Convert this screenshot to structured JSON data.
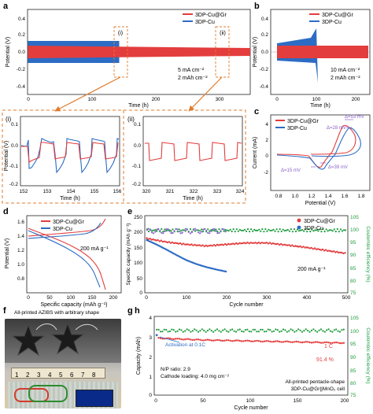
{
  "colors": {
    "red": "#e33d3d",
    "blue": "#2d6cc4",
    "green": "#1c9c3c",
    "orange": "#e07b2c",
    "purple": "#8a63c9"
  },
  "panel_letters": [
    "a",
    "b",
    "c",
    "d",
    "e",
    "f",
    "g",
    "h"
  ],
  "panel_a": {
    "legend": [
      "3DP-Cu@Gr",
      "3DP-Cu"
    ],
    "ylabel": "Potential (V)",
    "xlabel": "Time (h)",
    "xticks": [
      "0",
      "100",
      "200",
      "300"
    ],
    "yticks": [
      "0.4",
      "0.2",
      "0.0",
      "-0.2",
      "-0.4"
    ],
    "marks": [
      "(i)",
      "(ii)"
    ],
    "note_line1": "5 mA cm⁻²",
    "note_line2": "2 mAh cm⁻²"
  },
  "panel_b": {
    "legend": [
      "3DP-Cu@Gr",
      "3DP-Cu"
    ],
    "ylabel": "Potential (V)",
    "xlabel": "Time (h)",
    "xticks": [
      "0",
      "100",
      "200"
    ],
    "yticks": [
      "0.4",
      "0.2",
      "0.0",
      "-0.2",
      "-0.4"
    ],
    "note_line1": "10 mA cm⁻²",
    "note_line2": "2 mAh cm⁻²"
  },
  "panel_i": {
    "label": "(i)",
    "ylabel": "Potential (V)",
    "xlabel": "Time (h)",
    "xticks": [
      "152",
      "153",
      "154",
      "155",
      "156"
    ],
    "yticks": [
      "0.1",
      "0.0",
      "-0.1",
      "-0.2"
    ]
  },
  "panel_ii": {
    "label": "(ii)",
    "xlabel": "Time (h)",
    "xticks": [
      "320",
      "321",
      "322",
      "323",
      "324"
    ],
    "yticks": [
      "0.1",
      "0.0",
      "-0.1",
      "-0.2"
    ]
  },
  "panel_c": {
    "legend": [
      "3DP-Cu@Gr",
      "3DP-Cu"
    ],
    "ylabel": "Current (mA)",
    "xlabel": "Potential (V)",
    "xticks": [
      "0.8",
      "1.0",
      "1.2",
      "1.4",
      "1.6",
      "1.8"
    ],
    "yticks": [
      "4",
      "2",
      "0",
      "-2"
    ],
    "ann": [
      "Δ=53 mV",
      "Δ=28 mV",
      "Δ=15 mV",
      "Δ=39 mV"
    ]
  },
  "panel_d": {
    "legend": [
      "3DP-Cu@Gr",
      "3DP-Cu"
    ],
    "ylabel": "Potential (V)",
    "xlabel": "Specific capacity (mAh g⁻¹)",
    "xticks": [
      "0",
      "50",
      "100",
      "150",
      "200"
    ],
    "yticks": [
      "1.6",
      "1.4",
      "1.2",
      "1.0",
      "0.8"
    ],
    "rate": "200 mA g⁻¹"
  },
  "panel_e": {
    "legend": [
      "3DP-Cu@Gr",
      "3DP-Cu"
    ],
    "ylabel": "Specific capacity (mAh g⁻¹)",
    "ylabel2": "Coulombic efficiency (%)",
    "xlabel": "Cycle number",
    "xticks": [
      "0",
      "100",
      "200",
      "300",
      "400",
      "500"
    ],
    "yticks": [
      "250",
      "200",
      "150",
      "100",
      "50",
      "0"
    ],
    "y2ticks": [
      "105",
      "100",
      "95",
      "90",
      "85",
      "80",
      "75"
    ],
    "rate": "200 mA g⁻¹"
  },
  "panel_f": {
    "title": "All-printed AZIBS with arbitrary shape",
    "ruler_numbers": [
      "1",
      "2",
      "3",
      "4",
      "5",
      "6",
      "7",
      "8"
    ]
  },
  "panel_h": {
    "ylabel": "Capacity (mAh)",
    "ylabel2": "Coulombic efficiency (%)",
    "xlabel": "Cycle number",
    "xticks": [
      "0",
      "50",
      "100",
      "150",
      "200"
    ],
    "yticks": [
      "4",
      "3",
      "2",
      "1",
      "0"
    ],
    "y2ticks": [
      "105",
      "100",
      "95",
      "90",
      "85",
      "80",
      "75"
    ],
    "activation": "Activation at 0.1C",
    "np_ratio": "N/P ratio: 2.9",
    "loading": "Cathode loading: 4.0 mg cm⁻²",
    "rate": "1 C",
    "retention": "91.4 %",
    "cell_line1": "All-printed pentacle-shape",
    "cell_line2": "3DP-Cu@Gr||MnO₂ cell"
  },
  "chart_data": [
    {
      "panel": "a",
      "type": "line",
      "xlabel": "Time (h)",
      "ylabel": "Potential (V)",
      "xlim": [
        0,
        350
      ],
      "ylim": [
        -0.45,
        0.45
      ],
      "series": [
        {
          "name": "3DP-Cu@Gr",
          "note": "stable ±0.05 V to 350 h"
        },
        {
          "name": "3DP-Cu",
          "note": "±0.12 V, fails near 150 h"
        }
      ]
    },
    {
      "panel": "b",
      "type": "line",
      "xlabel": "Time (h)",
      "ylabel": "Potential (V)",
      "xlim": [
        0,
        250
      ],
      "ylim": [
        -0.45,
        0.45
      ],
      "series": [
        {
          "name": "3DP-Cu@Gr"
        },
        {
          "name": "3DP-Cu",
          "note": "fails near 100 h"
        }
      ]
    },
    {
      "panel": "c",
      "type": "line",
      "xlabel": "Potential (V)",
      "ylabel": "Current (mA)",
      "xlim": [
        0.75,
        1.85
      ],
      "ylim": [
        -2.5,
        5
      ],
      "series": [
        {
          "name": "3DP-Cu@Gr"
        },
        {
          "name": "3DP-Cu"
        }
      ]
    },
    {
      "panel": "d",
      "type": "line",
      "xlabel": "Specific capacity (mAh g⁻¹)",
      "ylabel": "Potential (V)",
      "xlim": [
        0,
        225
      ],
      "ylim": [
        0.75,
        1.85
      ],
      "series": [
        {
          "name": "3DP-Cu@Gr",
          "capacity": 180
        },
        {
          "name": "3DP-Cu",
          "capacity": 165
        }
      ]
    },
    {
      "panel": "e",
      "type": "scatter",
      "xlabel": "Cycle number",
      "ylabel": "Specific capacity (mAh g⁻¹)",
      "xlim": [
        0,
        500
      ],
      "ylim": [
        0,
        250
      ],
      "y2lim": [
        75,
        105
      ],
      "series": [
        {
          "name": "3DP-Cu@Gr",
          "x": [
            0,
            50,
            100,
            150,
            200,
            250,
            300,
            350,
            400,
            450,
            500
          ],
          "y": [
            180,
            168,
            160,
            155,
            160,
            165,
            165,
            158,
            150,
            140,
            130
          ]
        },
        {
          "name": "3DP-Cu",
          "x": [
            0,
            25,
            50,
            75,
            100,
            125,
            150,
            175,
            200
          ],
          "y": [
            175,
            160,
            143,
            125,
            108,
            95,
            85,
            77,
            70
          ]
        }
      ]
    },
    {
      "panel": "h",
      "type": "scatter",
      "xlabel": "Cycle number",
      "ylabel": "Capacity (mAh)",
      "xlim": [
        0,
        200
      ],
      "ylim": [
        0,
        4
      ],
      "y2lim": [
        75,
        105
      ],
      "series": [
        {
          "x": [
            0,
            50,
            100,
            150,
            200
          ],
          "y": [
            2.9,
            2.8,
            2.75,
            2.7,
            2.65
          ]
        }
      ]
    }
  ]
}
